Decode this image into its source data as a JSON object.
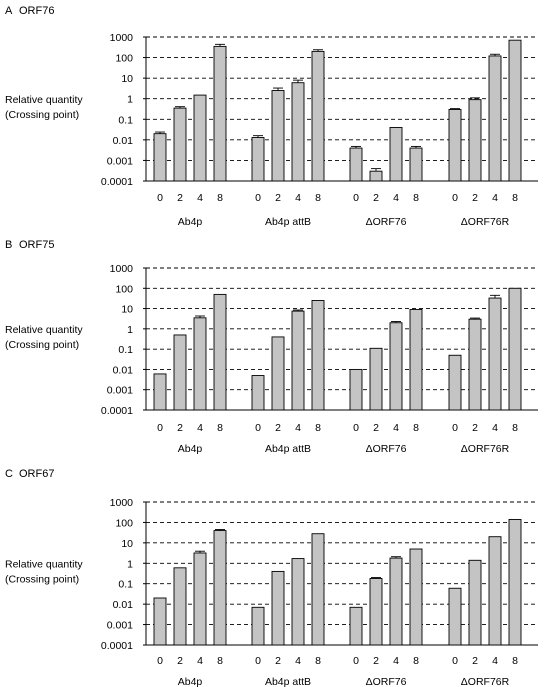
{
  "chart_data": [
    {
      "type": "bar",
      "panel_letter": "A",
      "title": "ORF76",
      "ylabel": [
        "Relative quantity",
        "(Crossing point)"
      ],
      "yscale": "log",
      "ylim": [
        0.0001,
        1000
      ],
      "yticks": [
        "1000",
        "100",
        "10",
        "1",
        "0.1",
        "0.01",
        "0.001",
        "0.0001"
      ],
      "grid": "dashed horizontal",
      "groups": [
        {
          "name": "Ab4p",
          "categories": [
            "0",
            "2",
            "4",
            "8"
          ],
          "values": [
            0.02,
            0.35,
            1.5,
            350
          ],
          "errors": [
            0.004,
            0.06,
            0,
            90
          ]
        },
        {
          "name": "Ab4p attB",
          "categories": [
            "0",
            "2",
            "4",
            "8"
          ],
          "values": [
            0.013,
            2.5,
            6,
            200
          ],
          "errors": [
            0.003,
            0.8,
            2,
            40
          ]
        },
        {
          "name": "ΔORF76",
          "categories": [
            "0",
            "2",
            "4",
            "8"
          ],
          "values": [
            0.004,
            0.0003,
            0.04,
            0.004
          ],
          "errors": [
            0.0008,
            0.0001,
            0,
            0.0008
          ]
        },
        {
          "name": "ΔORF76R",
          "categories": [
            "0",
            "2",
            "4",
            "8"
          ],
          "values": [
            0.3,
            0.9,
            120,
            700
          ],
          "errors": [
            0.03,
            0.2,
            25,
            0
          ]
        }
      ]
    },
    {
      "type": "bar",
      "panel_letter": "B",
      "title": "ORF75",
      "ylabel": [
        "Relative quantity",
        "(Crossing point)"
      ],
      "yscale": "log",
      "ylim": [
        0.0001,
        1000
      ],
      "yticks": [
        "1000",
        "100",
        "10",
        "1",
        "0.1",
        "0.01",
        "0.001",
        "0.0001"
      ],
      "grid": "dashed horizontal",
      "groups": [
        {
          "name": "Ab4p",
          "categories": [
            "0",
            "2",
            "4",
            "8"
          ],
          "values": [
            0.006,
            0.5,
            3.5,
            50
          ],
          "errors": [
            0,
            0,
            0.8,
            0
          ]
        },
        {
          "name": "Ab4p attB",
          "categories": [
            "0",
            "2",
            "4",
            "8"
          ],
          "values": [
            0.005,
            0.4,
            7.5,
            25
          ],
          "errors": [
            0,
            0,
            1,
            0
          ]
        },
        {
          "name": "ΔORF76",
          "categories": [
            "0",
            "2",
            "4",
            "8"
          ],
          "values": [
            0.01,
            0.11,
            2,
            9
          ],
          "errors": [
            0,
            0,
            0.3,
            0
          ]
        },
        {
          "name": "ΔORF76R",
          "categories": [
            "0",
            "2",
            "4",
            "8"
          ],
          "values": [
            0.05,
            3,
            33,
            100
          ],
          "errors": [
            0,
            0.4,
            12,
            0
          ]
        }
      ]
    },
    {
      "type": "bar",
      "panel_letter": "C",
      "title": "ORF67",
      "ylabel": [
        "Relative quantity",
        "(Crossing point)"
      ],
      "yscale": "log",
      "ylim": [
        0.0001,
        1000
      ],
      "yticks": [
        "1000",
        "100",
        "10",
        "1",
        "0.1",
        "0.01",
        "0.001",
        "0.0001"
      ],
      "grid": "dashed horizontal",
      "groups": [
        {
          "name": "Ab4p",
          "categories": [
            "0",
            "2",
            "4",
            "8"
          ],
          "values": [
            0.02,
            0.6,
            3.2,
            40
          ],
          "errors": [
            0,
            0,
            0.7,
            5
          ]
        },
        {
          "name": "Ab4p attB",
          "categories": [
            "0",
            "2",
            "4",
            "8"
          ],
          "values": [
            0.007,
            0.4,
            1.7,
            28
          ],
          "errors": [
            0,
            0,
            0,
            0
          ]
        },
        {
          "name": "ΔORF76",
          "categories": [
            "0",
            "2",
            "4",
            "8"
          ],
          "values": [
            0.007,
            0.18,
            1.8,
            5
          ],
          "errors": [
            0,
            0.02,
            0.3,
            0
          ]
        },
        {
          "name": "ΔORF76R",
          "categories": [
            "0",
            "2",
            "4",
            "8"
          ],
          "values": [
            0.06,
            1.4,
            20,
            140
          ],
          "errors": [
            0,
            0,
            0,
            0
          ]
        }
      ]
    }
  ]
}
